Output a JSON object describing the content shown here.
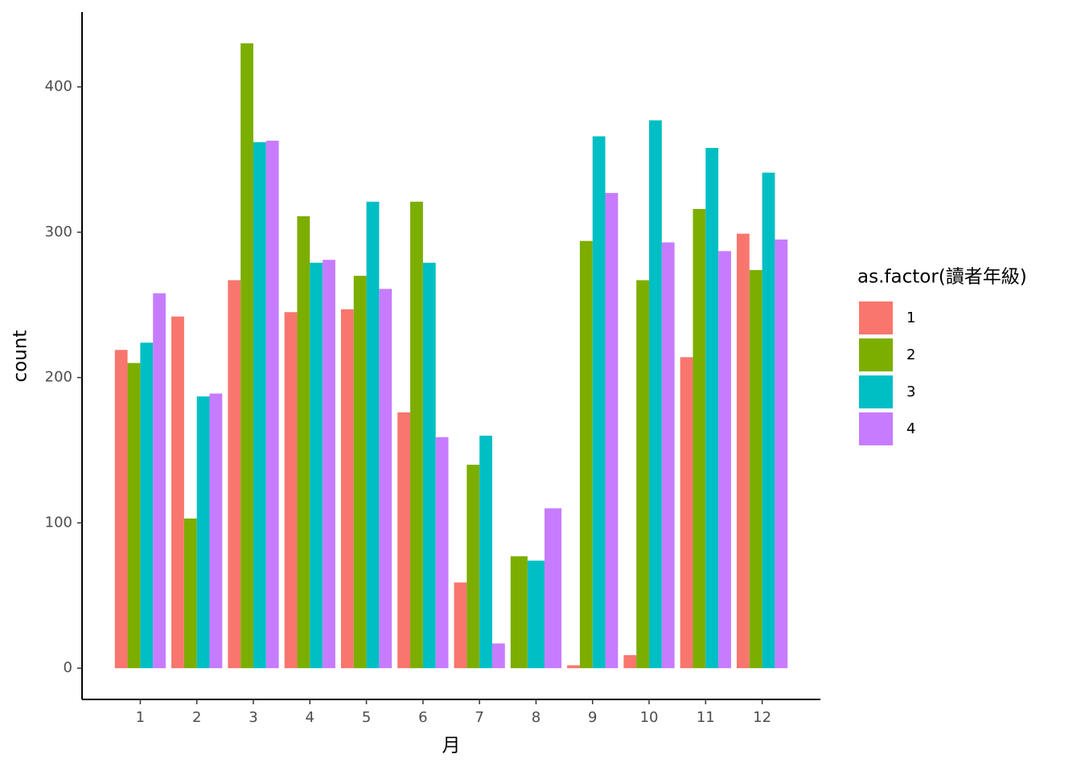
{
  "chart_data": {
    "type": "bar",
    "x_label": "月",
    "y_label": "count",
    "legend_title": "as.factor(讀者年級)",
    "categories": [
      "1",
      "2",
      "3",
      "4",
      "5",
      "6",
      "7",
      "8",
      "9",
      "10",
      "11",
      "12"
    ],
    "series": [
      {
        "name": "1",
        "color": "#F8766D",
        "values": [
          219,
          242,
          267,
          245,
          247,
          176,
          59,
          null,
          2,
          9,
          214,
          299
        ]
      },
      {
        "name": "2",
        "color": "#7CAE00",
        "values": [
          210,
          103,
          430,
          311,
          270,
          321,
          140,
          77,
          294,
          267,
          316,
          274
        ]
      },
      {
        "name": "3",
        "color": "#00BFC4",
        "values": [
          224,
          187,
          362,
          279,
          321,
          279,
          160,
          74,
          366,
          377,
          358,
          341
        ]
      },
      {
        "name": "4",
        "color": "#C77CFF",
        "values": [
          258,
          189,
          363,
          281,
          261,
          159,
          17,
          110,
          327,
          293,
          287,
          295
        ]
      }
    ],
    "ylim": [
      -21.5,
      451.5
    ],
    "yticks": [
      0,
      100,
      200,
      300,
      400
    ],
    "grid": false,
    "legend": "right"
  }
}
